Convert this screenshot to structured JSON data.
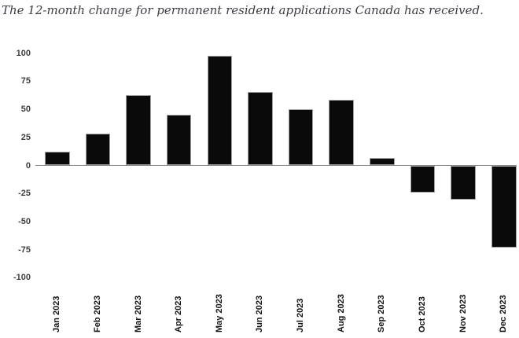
{
  "title": "The 12-month change for permanent resident applications Canada has received.",
  "colors": {
    "background": "#ffffff",
    "title_text": "#3c3c43",
    "bar": "#0a0a0a",
    "bar_border": "#a0a0a0",
    "axis_line": "#8a8a8a",
    "y_tick_text": "#3f3f3f",
    "x_tick_text": "#141414"
  },
  "chart_data": {
    "type": "bar",
    "title": "The 12-month change for permanent resident applications Canada has received.",
    "categories": [
      "Jan 2023",
      "Feb 2023",
      "Mar 2023",
      "Apr 2023",
      "May 2023",
      "Jun 2023",
      "Jul 2023",
      "Aug 2023",
      "Sep 2023",
      "Oct 2023",
      "Nov 2023",
      "Dec 2023"
    ],
    "values": [
      12,
      28,
      62,
      45,
      97,
      65,
      50,
      58,
      6,
      -24,
      -30,
      -73
    ],
    "xlabel": "",
    "ylabel": "",
    "ylim": [
      -100,
      100
    ],
    "yticks": [
      100,
      75,
      50,
      25,
      0,
      -25,
      -50,
      -75,
      -100
    ],
    "grid": false,
    "legend": "none",
    "bar_color": "#0a0a0a",
    "x_tick_rotation": 90
  }
}
